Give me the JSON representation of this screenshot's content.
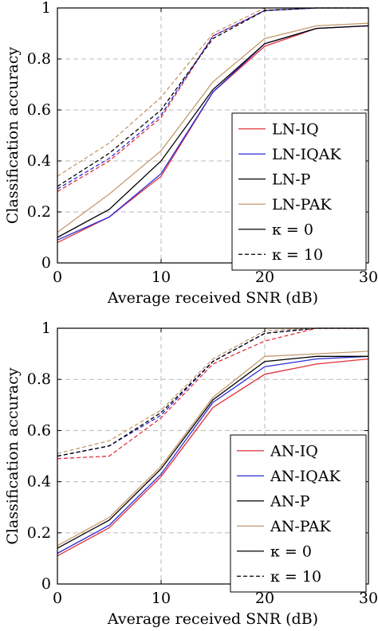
{
  "chart_data": [
    {
      "type": "line",
      "xlabel": "Average received SNR (dB)",
      "ylabel": "Classification accuracy",
      "xlim": [
        0,
        30
      ],
      "ylim": [
        0,
        1
      ],
      "xticks": [
        "0",
        "10",
        "20",
        "30"
      ],
      "yticks": [
        "0",
        "0.2",
        "0.4",
        "0.6",
        "0.8",
        "1"
      ],
      "grid": true,
      "legend_position": "right",
      "x": [
        0,
        5,
        10,
        15,
        20,
        25,
        30
      ],
      "series": [
        {
          "name": "LN-IQ",
          "color": "#e0303a",
          "dash": "solid",
          "values": [
            0.08,
            0.18,
            0.34,
            0.67,
            0.85,
            0.92,
            0.93
          ]
        },
        {
          "name": "LN-IQAK",
          "color": "#2a2ad8",
          "dash": "solid",
          "values": [
            0.09,
            0.18,
            0.35,
            0.67,
            0.86,
            0.92,
            0.93
          ]
        },
        {
          "name": "LN-P",
          "color": "#000000",
          "dash": "solid",
          "values": [
            0.1,
            0.21,
            0.4,
            0.68,
            0.86,
            0.92,
            0.93
          ]
        },
        {
          "name": "LN-PAK",
          "color": "#c49a6c",
          "dash": "solid",
          "values": [
            0.12,
            0.27,
            0.44,
            0.71,
            0.88,
            0.93,
            0.94
          ]
        },
        {
          "name": "LN-IQ",
          "color": "#e0303a",
          "dash": "dashed",
          "values": [
            0.28,
            0.4,
            0.57,
            0.89,
            0.99,
            1.0,
            1.0
          ]
        },
        {
          "name": "LN-IQAK",
          "color": "#2a2ad8",
          "dash": "dashed",
          "values": [
            0.29,
            0.41,
            0.58,
            0.89,
            0.99,
            1.0,
            1.0
          ]
        },
        {
          "name": "LN-P",
          "color": "#000000",
          "dash": "dashed",
          "values": [
            0.3,
            0.43,
            0.6,
            0.88,
            0.99,
            1.0,
            1.0
          ]
        },
        {
          "name": "LN-PAK",
          "color": "#c49a6c",
          "dash": "dashed",
          "values": [
            0.34,
            0.47,
            0.65,
            0.9,
            1.0,
            1.0,
            1.0
          ]
        }
      ],
      "legend": [
        {
          "label": "LN-IQ",
          "color": "#e0303a",
          "dash": "solid"
        },
        {
          "label": "LN-IQAK",
          "color": "#2a2ad8",
          "dash": "solid"
        },
        {
          "label": "LN-P",
          "color": "#000000",
          "dash": "solid"
        },
        {
          "label": "LN-PAK",
          "color": "#c49a6c",
          "dash": "solid"
        },
        {
          "label": "κ = 0",
          "color": "#000000",
          "dash": "solid"
        },
        {
          "label": "κ = 10",
          "color": "#000000",
          "dash": "dashed"
        }
      ]
    },
    {
      "type": "line",
      "xlabel": "Average received SNR (dB)",
      "ylabel": "Classification accuracy",
      "xlim": [
        0,
        30
      ],
      "ylim": [
        0,
        1
      ],
      "xticks": [
        "0",
        "10",
        "20",
        "30"
      ],
      "yticks": [
        "0",
        "0.2",
        "0.4",
        "0.6",
        "0.8",
        "1"
      ],
      "grid": true,
      "legend_position": "bottom-right",
      "x": [
        0,
        5,
        10,
        15,
        20,
        25,
        30
      ],
      "series": [
        {
          "name": "AN-IQ",
          "color": "#e0303a",
          "dash": "solid",
          "values": [
            0.11,
            0.22,
            0.42,
            0.69,
            0.82,
            0.86,
            0.88
          ]
        },
        {
          "name": "AN-IQAK",
          "color": "#2a2ad8",
          "dash": "solid",
          "values": [
            0.12,
            0.23,
            0.43,
            0.71,
            0.85,
            0.88,
            0.89
          ]
        },
        {
          "name": "AN-P",
          "color": "#000000",
          "dash": "solid",
          "values": [
            0.14,
            0.25,
            0.45,
            0.72,
            0.87,
            0.89,
            0.89
          ]
        },
        {
          "name": "AN-PAK",
          "color": "#c49a6c",
          "dash": "solid",
          "values": [
            0.15,
            0.26,
            0.46,
            0.73,
            0.89,
            0.9,
            0.91
          ]
        },
        {
          "name": "AN-IQ",
          "color": "#e0303a",
          "dash": "dashed",
          "values": [
            0.49,
            0.5,
            0.65,
            0.86,
            0.95,
            1.0,
            1.0
          ]
        },
        {
          "name": "AN-IQAK",
          "color": "#2a2ad8",
          "dash": "dashed",
          "values": [
            0.5,
            0.54,
            0.66,
            0.87,
            0.98,
            1.0,
            1.0
          ]
        },
        {
          "name": "AN-P",
          "color": "#000000",
          "dash": "dashed",
          "values": [
            0.5,
            0.54,
            0.67,
            0.87,
            0.98,
            1.0,
            1.0
          ]
        },
        {
          "name": "AN-PAK",
          "color": "#c49a6c",
          "dash": "dashed",
          "values": [
            0.51,
            0.56,
            0.68,
            0.88,
            0.99,
            1.0,
            1.0
          ]
        }
      ],
      "legend": [
        {
          "label": "AN-IQ",
          "color": "#e0303a",
          "dash": "solid"
        },
        {
          "label": "AN-IQAK",
          "color": "#2a2ad8",
          "dash": "solid"
        },
        {
          "label": "AN-P",
          "color": "#000000",
          "dash": "solid"
        },
        {
          "label": "AN-PAK",
          "color": "#c49a6c",
          "dash": "solid"
        },
        {
          "label": "κ = 0",
          "color": "#000000",
          "dash": "solid"
        },
        {
          "label": "κ = 10",
          "color": "#000000",
          "dash": "dashed"
        }
      ]
    }
  ]
}
